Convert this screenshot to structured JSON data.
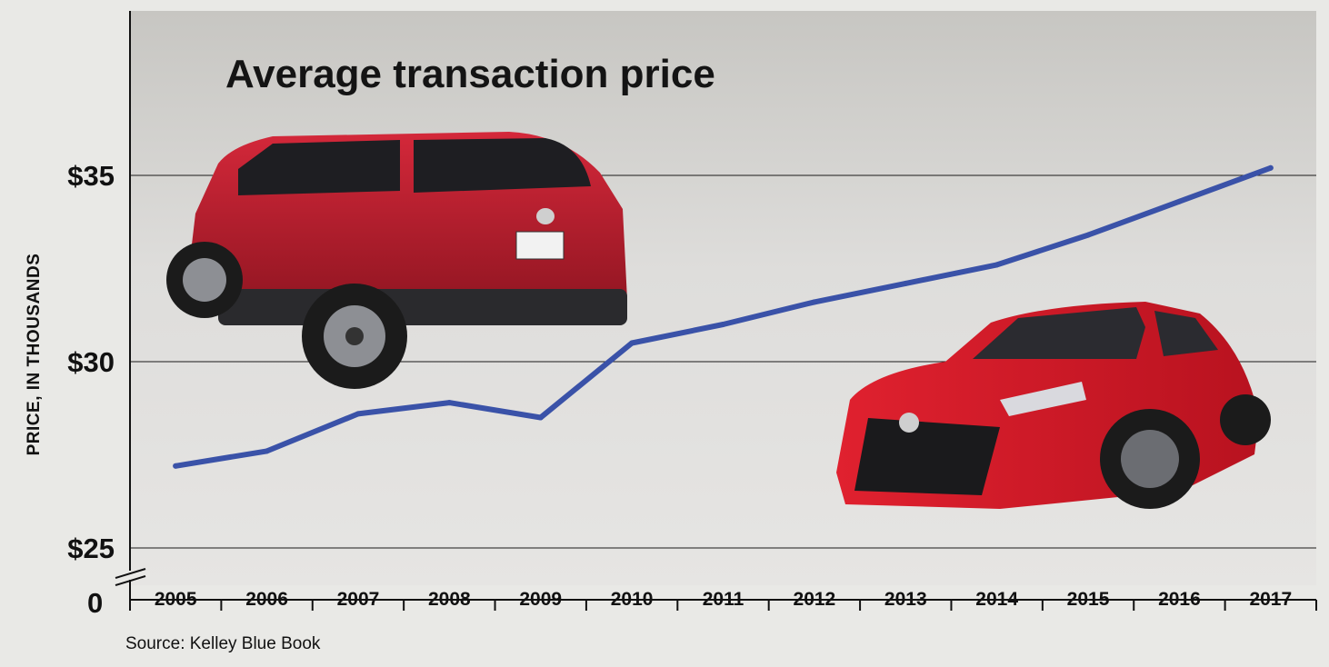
{
  "chart_data": {
    "type": "line",
    "title": "Average transaction price",
    "ylabel": "PRICE, IN THOUSANDS",
    "source": "Source: Kelley Blue Book",
    "x": [
      "2005",
      "2006",
      "2007",
      "2008",
      "2009",
      "2010",
      "2011",
      "2012",
      "2013",
      "2014",
      "2015",
      "2016",
      "2017"
    ],
    "series": [
      {
        "values": [
          27.2,
          27.6,
          28.6,
          28.9,
          28.5,
          30.5,
          31.0,
          31.6,
          32.1,
          32.6,
          33.4,
          34.3,
          35.2
        ]
      }
    ],
    "y_ticks": [
      {
        "value": 25,
        "label": "$25"
      },
      {
        "value": 30,
        "label": "$30"
      },
      {
        "value": 35,
        "label": "$35"
      }
    ],
    "y_zero_label": "0",
    "ylim": [
      25,
      40
    ],
    "axis_break": true,
    "grid": true,
    "line_color": "#3a52a8"
  },
  "illustrations": {
    "top_left": "red-compact-suv-photo",
    "bottom_right": "red-sedan-photo"
  }
}
